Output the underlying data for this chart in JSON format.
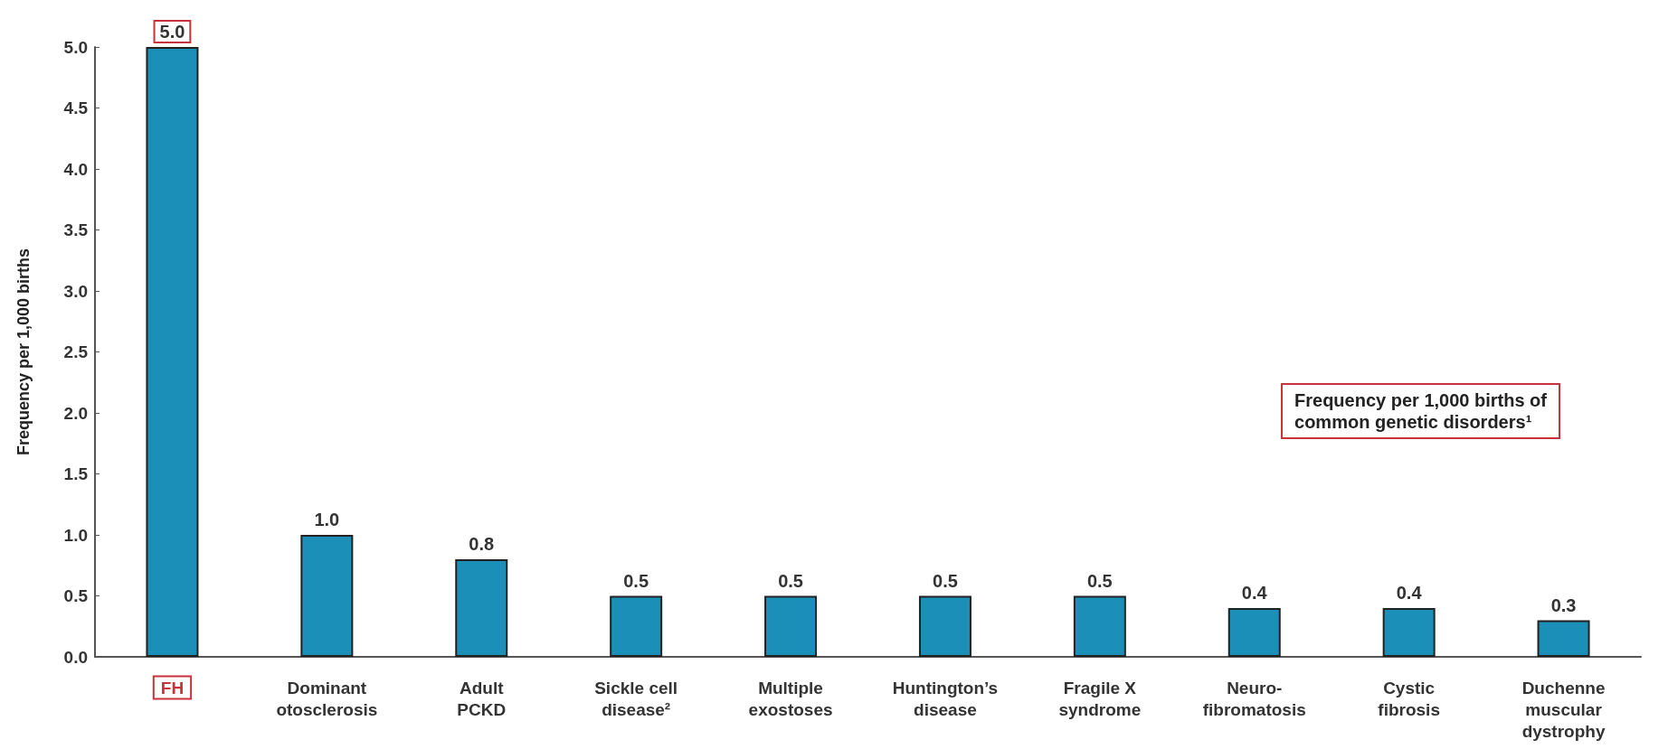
{
  "chart_data": {
    "type": "bar",
    "title": "Frequency per 1,000 births of\ncommon genetic disorders¹",
    "ylabel": "Frequency per 1,000 births",
    "categories": [
      "FH",
      "Dominant\notosclerosis",
      "Adult\nPCKD",
      "Sickle cell\ndisease²",
      "Multiple\nexostoses",
      "Huntington’s\ndisease",
      "Fragile X\nsyndrome",
      "Neuro-\nfibromatosis",
      "Cystic\nfibrosis",
      "Duchenne\nmuscular\ndystrophy"
    ],
    "values": [
      5.0,
      1.0,
      0.8,
      0.5,
      0.5,
      0.5,
      0.5,
      0.4,
      0.4,
      0.3
    ],
    "value_labels": [
      "5.0",
      "1.0",
      "0.8",
      "0.5",
      "0.5",
      "0.5",
      "0.5",
      "0.4",
      "0.4",
      "0.3"
    ],
    "color": "#1b8fb8",
    "ylim": [
      0,
      5
    ],
    "yticks": [
      {
        "value": 0,
        "label": "0.0"
      },
      {
        "value": 0.5,
        "label": "0.5"
      },
      {
        "value": 1,
        "label": "1.0"
      },
      {
        "value": 1.5,
        "label": "1.5"
      },
      {
        "value": 2,
        "label": "2.0"
      },
      {
        "value": 2.5,
        "label": "2.5"
      },
      {
        "value": 3,
        "label": "3.0"
      },
      {
        "value": 3.5,
        "label": "3.5"
      },
      {
        "value": 4,
        "label": "4.0"
      },
      {
        "value": 4.5,
        "label": "4.5"
      },
      {
        "value": 5,
        "label": "5.0"
      }
    ],
    "grid": false
  }
}
